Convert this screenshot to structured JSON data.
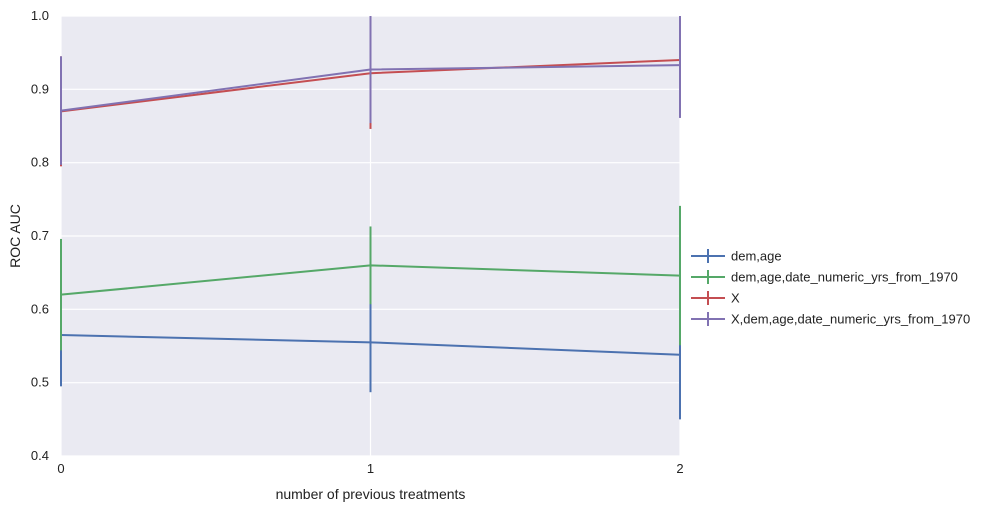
{
  "chart_data": {
    "type": "line",
    "xlabel": "number of previous treatments",
    "ylabel": "ROC AUC",
    "x": [
      0,
      1,
      2
    ],
    "xlim": [
      0,
      2
    ],
    "ylim": [
      0.4,
      1.0
    ],
    "xticks": [
      "0",
      "1",
      "2"
    ],
    "yticks": [
      "0.4",
      "0.5",
      "0.6",
      "0.7",
      "0.8",
      "0.9",
      "1.0"
    ],
    "grid": true,
    "legend_position": "right",
    "series": [
      {
        "name": "dem,age",
        "color": "#4c72b0",
        "values": [
          0.565,
          0.555,
          0.538
        ],
        "err": [
          0.07,
          0.068,
          0.088
        ]
      },
      {
        "name": "dem,age,date_numeric_yrs_from_1970",
        "color": "#55a868",
        "values": [
          0.62,
          0.66,
          0.646
        ],
        "err": [
          0.076,
          0.053,
          0.095
        ]
      },
      {
        "name": "X",
        "color": "#c44e52",
        "values": [
          0.87,
          0.922,
          0.94
        ],
        "err": [
          0.075,
          0.076,
          0.078
        ]
      },
      {
        "name": "X,dem,age,date_numeric_yrs_from_1970",
        "color": "#8172b2",
        "values": [
          0.871,
          0.927,
          0.933
        ],
        "err": [
          0.074,
          0.073,
          0.072
        ]
      }
    ]
  }
}
